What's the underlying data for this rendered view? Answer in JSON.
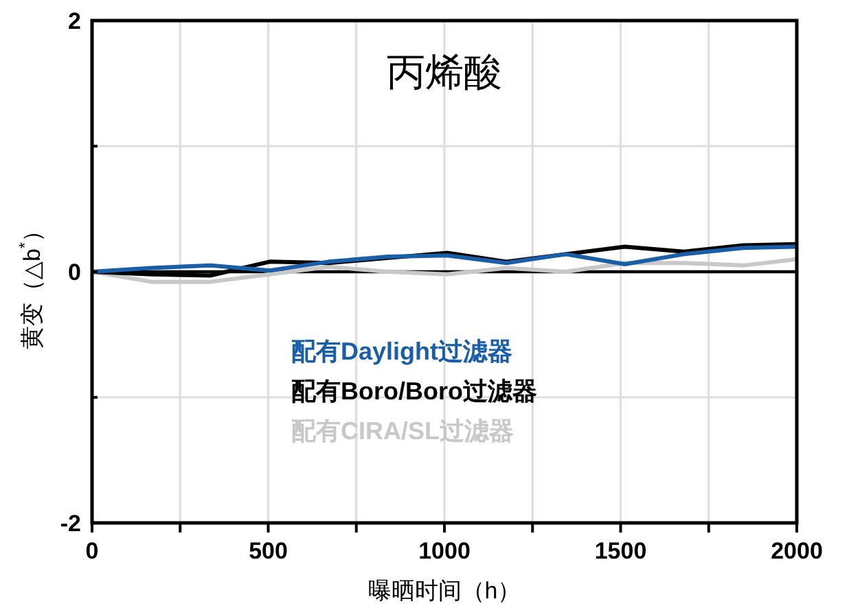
{
  "chart_data": {
    "type": "line",
    "title": "丙烯酸",
    "xlabel": "曝晒时间（h）",
    "ylabel": "黄变（△b$^{*}$）",
    "x": [
      0,
      168,
      336,
      504,
      672,
      840,
      1008,
      1176,
      1344,
      1512,
      1680,
      1848,
      2000
    ],
    "series": [
      {
        "name": "配有Daylight过滤器",
        "color": "#1a5ea8",
        "values": [
          0,
          0.03,
          0.05,
          0.01,
          0.08,
          0.12,
          0.13,
          0.07,
          0.14,
          0.06,
          0.14,
          0.19,
          0.2
        ]
      },
      {
        "name": "配有Boro/Boro过滤器",
        "color": "#000000",
        "values": [
          0,
          -0.02,
          -0.03,
          0.08,
          0.07,
          0.11,
          0.15,
          0.08,
          0.14,
          0.2,
          0.16,
          0.21,
          0.22
        ]
      },
      {
        "name": "配有CIRA/SL过滤器",
        "color": "#c8c8c8",
        "values": [
          0,
          -0.08,
          -0.08,
          -0.02,
          0.04,
          0,
          -0.02,
          0.03,
          0,
          0.07,
          0.07,
          0.05,
          0.1
        ]
      }
    ],
    "xlim": [
      0,
      2000
    ],
    "ylim": [
      -2,
      2
    ],
    "xticks": [
      0,
      {
        "value": 250,
        "label": null
      },
      500,
      {
        "value": 750,
        "label": null
      },
      1000,
      {
        "value": 1250,
        "label": null
      },
      1500,
      {
        "value": 1750,
        "label": null
      },
      2000
    ],
    "yticks": [
      -2,
      {
        "value": -1,
        "label": null
      },
      0,
      {
        "value": 1,
        "label": null
      },
      2
    ],
    "grid": true,
    "legend": "bottom",
    "ref_lines": [
      {
        "axis": "y",
        "value": 0,
        "color": "#000000"
      }
    ]
  }
}
